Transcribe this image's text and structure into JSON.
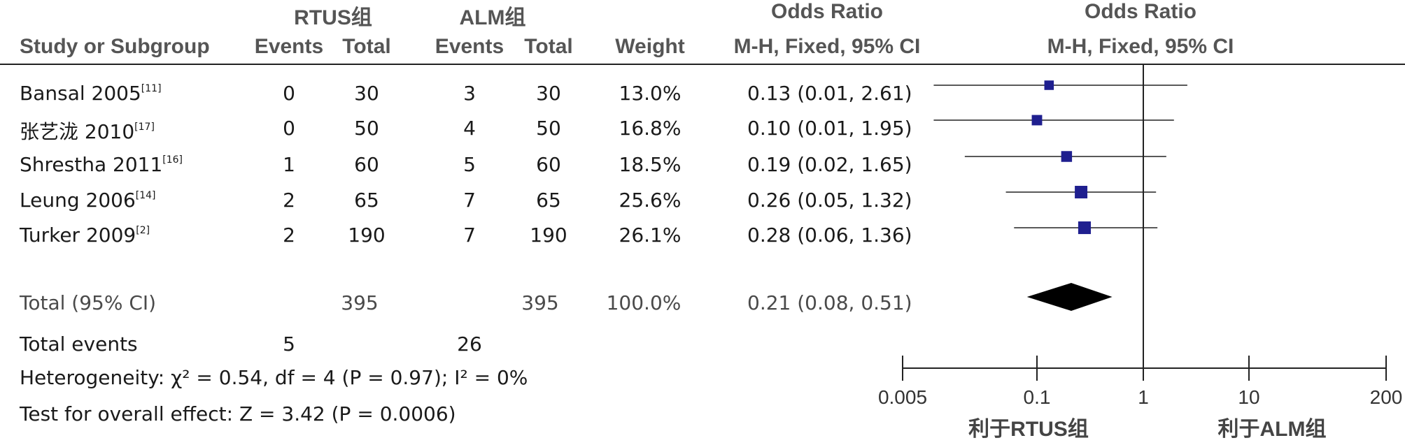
{
  "headers": {
    "group1": "RTUS组",
    "group2": "ALM组",
    "or_top_left": "Odds Ratio",
    "or_top_right": "Odds Ratio",
    "study": "Study or Subgroup",
    "events1": "Events",
    "total1": "Total",
    "events2": "Events",
    "total2": "Total",
    "weight": "Weight",
    "method_left": "M-H, Fixed, 95% CI",
    "method_right": "M-H, Fixed, 95% CI"
  },
  "studies": [
    {
      "name": "Bansal 2005",
      "ref": "[11]",
      "e1": "0",
      "t1": "30",
      "e2": "3",
      "t2": "30",
      "weight": "13.0%",
      "ci": "0.13 (0.01, 2.61)"
    },
    {
      "name": "张艺泷 2010",
      "ref": "[17]",
      "e1": "0",
      "t1": "50",
      "e2": "4",
      "t2": "50",
      "weight": "16.8%",
      "ci": "0.10 (0.01, 1.95)"
    },
    {
      "name": "Shrestha 2011",
      "ref": "[16]",
      "e1": "1",
      "t1": "60",
      "e2": "5",
      "t2": "60",
      "weight": "18.5%",
      "ci": "0.19 (0.02, 1.65)"
    },
    {
      "name": "Leung 2006",
      "ref": "[14]",
      "e1": "2",
      "t1": "65",
      "e2": "7",
      "t2": "65",
      "weight": "25.6%",
      "ci": "0.26 (0.05, 1.32)"
    },
    {
      "name": "Turker 2009",
      "ref": "[2]",
      "e1": "2",
      "t1": "190",
      "e2": "7",
      "t2": "190",
      "weight": "26.1%",
      "ci": "0.28 (0.06, 1.36)"
    }
  ],
  "total": {
    "label": "Total (95% CI)",
    "t1": "395",
    "t2": "395",
    "weight": "100.0%",
    "ci": "0.21 (0.08, 0.51)"
  },
  "total_events": {
    "label": "Total events",
    "e1": "5",
    "e2": "26"
  },
  "heterogeneity": "Heterogeneity: χ² = 0.54, df = 4 (P = 0.97); I² = 0%",
  "overall_effect": "Test for overall effect: Z = 3.42 (P = 0.0006)",
  "favours_left": "利于RTUS组",
  "favours_right": "利于ALM组",
  "colors": {
    "marker": "#1f1f8f",
    "diamond": "#000000",
    "line": "#222222"
  },
  "chart_data": {
    "type": "forest",
    "scale": "log",
    "xlim": [
      0.005,
      200
    ],
    "ticks": [
      {
        "value": 0.005,
        "label": "0.005"
      },
      {
        "value": 0.1,
        "label": "0.1"
      },
      {
        "value": 1,
        "label": "1"
      },
      {
        "value": 10,
        "label": "10"
      },
      {
        "value": 200,
        "label": "200"
      }
    ],
    "points": [
      {
        "study": "Bansal 2005",
        "or": 0.13,
        "lo": 0.01,
        "hi": 2.61,
        "weight": 13.0
      },
      {
        "study": "张艺泷 2010",
        "or": 0.1,
        "lo": 0.01,
        "hi": 1.95,
        "weight": 16.8
      },
      {
        "study": "Shrestha 2011",
        "or": 0.19,
        "lo": 0.02,
        "hi": 1.65,
        "weight": 18.5
      },
      {
        "study": "Leung 2006",
        "or": 0.26,
        "lo": 0.05,
        "hi": 1.32,
        "weight": 25.6
      },
      {
        "study": "Turker 2009",
        "or": 0.28,
        "lo": 0.06,
        "hi": 1.36,
        "weight": 26.1
      }
    ],
    "pooled": {
      "or": 0.21,
      "lo": 0.08,
      "hi": 0.51
    }
  }
}
